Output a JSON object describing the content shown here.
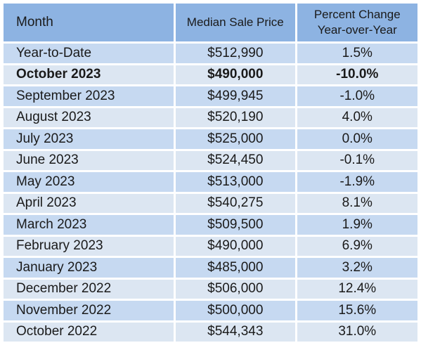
{
  "chart_data": {
    "type": "table",
    "columns": [
      "Month",
      "Median Sale Price",
      "Percent Change Year-over-Year"
    ],
    "header_lines": {
      "month": "Month",
      "price": "Median Sale Price",
      "change_line1": "Percent Change",
      "change_line2": "Year-over-Year"
    },
    "rows": [
      {
        "month": "Year-to-Date",
        "price": "$512,990",
        "change": "1.5%",
        "bold": false
      },
      {
        "month": "October 2023",
        "price": "$490,000",
        "change": "-10.0%",
        "bold": true
      },
      {
        "month": "September 2023",
        "price": "$499,945",
        "change": "-1.0%",
        "bold": false
      },
      {
        "month": "August 2023",
        "price": "$520,190",
        "change": "4.0%",
        "bold": false
      },
      {
        "month": "July 2023",
        "price": "$525,000",
        "change": "0.0%",
        "bold": false
      },
      {
        "month": "June 2023",
        "price": "$524,450",
        "change": "-0.1%",
        "bold": false
      },
      {
        "month": "May 2023",
        "price": "$513,000",
        "change": "-1.9%",
        "bold": false
      },
      {
        "month": "April 2023",
        "price": "$540,275",
        "change": "8.1%",
        "bold": false
      },
      {
        "month": "March 2023",
        "price": "$509,500",
        "change": "1.9%",
        "bold": false
      },
      {
        "month": "February 2023",
        "price": "$490,000",
        "change": "6.9%",
        "bold": false
      },
      {
        "month": "January 2023",
        "price": "$485,000",
        "change": "3.2%",
        "bold": false
      },
      {
        "month": "December 2022",
        "price": "$506,000",
        "change": "12.4%",
        "bold": false
      },
      {
        "month": "November 2022",
        "price": "$500,000",
        "change": "15.6%",
        "bold": false
      },
      {
        "month": "October 2022",
        "price": "$544,343",
        "change": "31.0%",
        "bold": false
      }
    ],
    "colors": {
      "header": "#8db3e2",
      "row_dark": "#c6d9f1",
      "row_light": "#dce6f2"
    }
  }
}
